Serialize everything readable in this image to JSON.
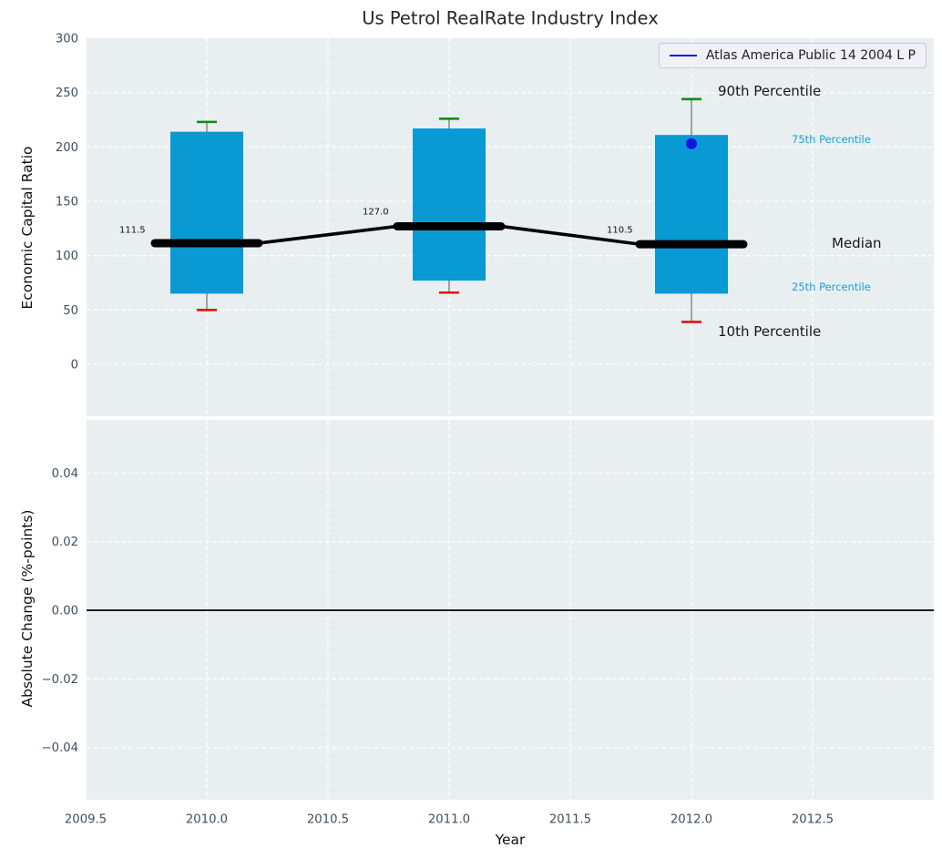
{
  "figure": {
    "title": "Us Petrol RealRate Industry Index"
  },
  "legend": {
    "label": "Atlas America Public 14 2004 L P",
    "line_color": "#1414e0"
  },
  "annotations": {
    "p90": "90th Percentile",
    "p75": "75th Percentile",
    "median": "Median",
    "p25": "25th Percentile",
    "p10": "10th Percentile"
  },
  "chart_data": {
    "type": "boxplot",
    "title": "Us Petrol RealRate Industry Index",
    "xlabel": "Year",
    "x_ticks": [
      2009.5,
      2010.0,
      2010.5,
      2011.0,
      2011.5,
      2012.0,
      2012.5
    ],
    "x_tick_labels": [
      "2009.5",
      "2010.0",
      "2010.5",
      "2011.0",
      "2011.5",
      "2012.0",
      "2012.5"
    ],
    "xlim": [
      2009.5,
      2013.0
    ],
    "grid": true,
    "legend_position": "upper right",
    "top": {
      "ylabel": "Economic Capital Ratio",
      "ylim": [
        -48,
        300
      ],
      "y_ticks": [
        0,
        50,
        100,
        150,
        200,
        250,
        300
      ],
      "boxes": [
        {
          "year": 2010,
          "p10": 50,
          "p25": 65,
          "median": 111.5,
          "p75": 214,
          "p90": 223,
          "label": "111.5"
        },
        {
          "year": 2011,
          "p10": 66,
          "p25": 77,
          "median": 127.0,
          "p75": 217,
          "p90": 226,
          "label": "127.0"
        },
        {
          "year": 2012,
          "p10": 39,
          "p25": 65,
          "median": 110.5,
          "p75": 211,
          "p90": 244,
          "label": "110.5"
        }
      ],
      "series_point": {
        "name": "Atlas America Public 14 2004 L P",
        "year": 2012,
        "value": 203
      }
    },
    "bottom": {
      "ylabel": "Absolute Change (%-points)",
      "ylim": [
        -0.056,
        0.055
      ],
      "y_ticks": [
        0.04,
        0.02,
        0.0,
        -0.02,
        -0.04
      ],
      "y_tick_labels": [
        "0.04",
        "0.02",
        "0.00",
        "−0.02",
        "−0.04"
      ],
      "zero_line": 0.0
    },
    "colors": {
      "box_fill": "#0a9ad3",
      "whisker": "#6e6e6e",
      "cap_high": "#0a8f0a",
      "cap_low": "#e51010",
      "median_line": "#000000",
      "point": "#1414e0",
      "grid": "#ffffff",
      "axes_bg": "#e9eef1",
      "tick_label": "#3d4e63"
    }
  }
}
